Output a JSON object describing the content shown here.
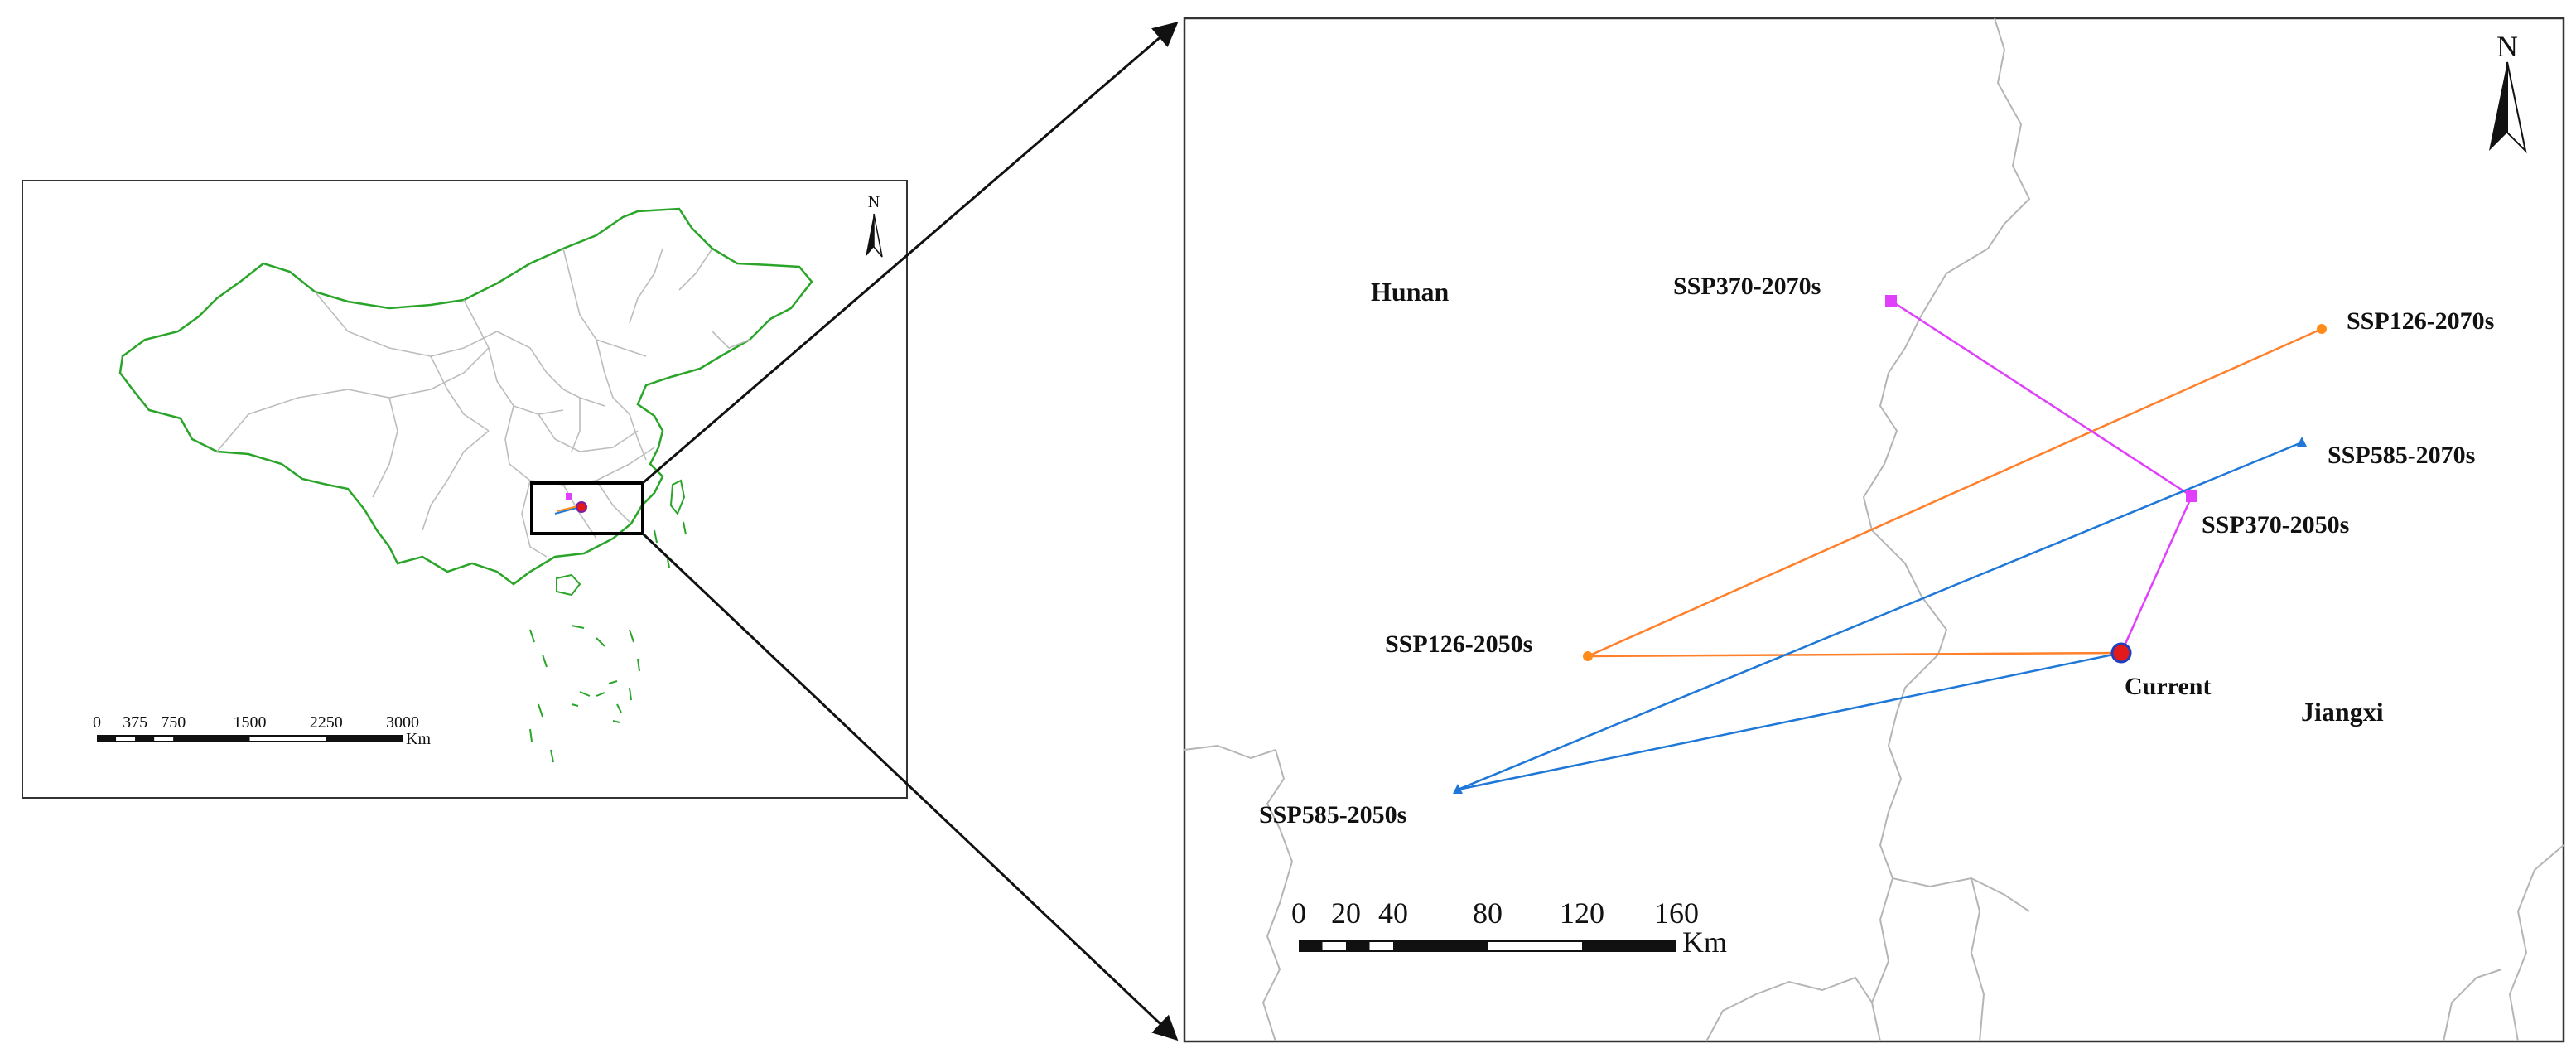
{
  "overview_map": {
    "north_label": "N",
    "scale": {
      "ticks": [
        "0",
        "375",
        "750",
        "1500",
        "2250",
        "3000"
      ],
      "unit": "Km"
    }
  },
  "detail_map": {
    "north_label": "N",
    "regions": [
      {
        "name": "Hunan"
      },
      {
        "name": "Jiangxi"
      }
    ],
    "points": [
      {
        "label": "Current",
        "scenario": "current",
        "marker": "circle",
        "color": "#e31a1c"
      },
      {
        "label": "SSP126-2050s",
        "scenario": "SSP126",
        "marker": "dot",
        "color": "#ff8c1a"
      },
      {
        "label": "SSP126-2070s",
        "scenario": "SSP126",
        "marker": "dot",
        "color": "#ff8c1a"
      },
      {
        "label": "SSP370-2050s",
        "scenario": "SSP370",
        "marker": "square",
        "color": "#e040fb"
      },
      {
        "label": "SSP370-2070s",
        "scenario": "SSP370",
        "marker": "square",
        "color": "#e040fb"
      },
      {
        "label": "SSP585-2050s",
        "scenario": "SSP585",
        "marker": "triangle",
        "color": "#1f78d8"
      },
      {
        "label": "SSP585-2070s",
        "scenario": "SSP585",
        "marker": "triangle",
        "color": "#1f78d8"
      }
    ],
    "shift_paths": [
      {
        "scenario": "SSP126",
        "route": [
          "Current",
          "SSP126-2050s",
          "SSP126-2070s"
        ],
        "color": "#ff7f2a"
      },
      {
        "scenario": "SSP370",
        "route": [
          "Current",
          "SSP370-2050s",
          "SSP370-2070s"
        ],
        "color": "#e040fb"
      },
      {
        "scenario": "SSP585",
        "route": [
          "Current",
          "SSP585-2050s",
          "SSP585-2070s"
        ],
        "color": "#1f78d8"
      }
    ],
    "scale": {
      "ticks": [
        "0",
        "20",
        "40",
        "80",
        "120",
        "160"
      ],
      "unit": "Km"
    }
  },
  "colors": {
    "coastline": "#2aa52a",
    "province_border": "#b9b9b9",
    "frame": "#222222"
  }
}
